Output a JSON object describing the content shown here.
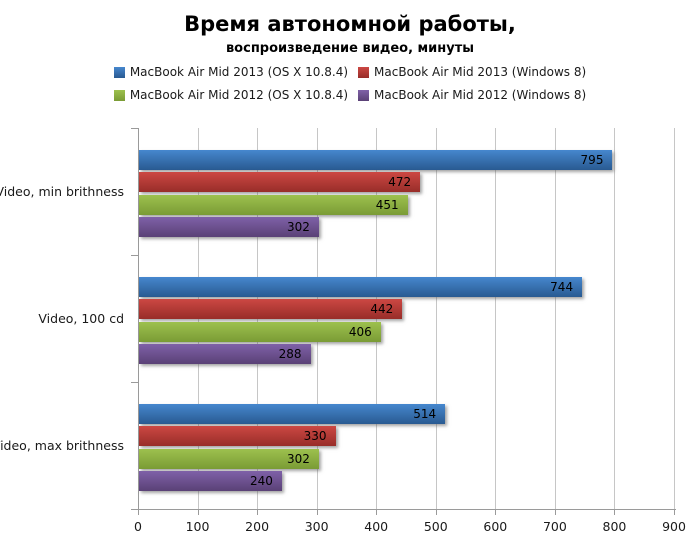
{
  "chart_data": {
    "type": "bar",
    "orientation": "horizontal",
    "title": "Время автономной работы,",
    "subtitle": "воспроизведение видео, минуты",
    "categories": [
      "Video, min brithness",
      "Video, 100 cd",
      "Video, max brithness"
    ],
    "series": [
      {
        "name": "MacBook Air Mid 2013 (OS X 10.8.4)",
        "values": [
          795,
          744,
          514
        ],
        "color_top": "#4687CE",
        "color_bottom": "#295A91"
      },
      {
        "name": "MacBook Air Mid 2013 (Windows 8)",
        "values": [
          472,
          442,
          330
        ],
        "color_top": "#CC4843",
        "color_bottom": "#982D29"
      },
      {
        "name": "MacBook Air Mid 2012 (OS X 10.8.4)",
        "values": [
          451,
          406,
          302
        ],
        "color_top": "#9DC14E",
        "color_bottom": "#7A9B35"
      },
      {
        "name": "MacBook Air Mid 2012 (Windows 8)",
        "values": [
          302,
          288,
          240
        ],
        "color_top": "#7F61A8",
        "color_bottom": "#5A4176"
      }
    ],
    "xlim": [
      0,
      900
    ],
    "x_ticks": [
      "0",
      "100",
      "200",
      "300",
      "400",
      "500",
      "600",
      "700",
      "800",
      "900"
    ],
    "grid": true,
    "legend_position": "top",
    "legend_rows": [
      [
        0,
        1
      ],
      [
        2,
        3
      ]
    ],
    "axis_color": "#9a9a9a",
    "gridline_color": "#c6c6c6"
  }
}
